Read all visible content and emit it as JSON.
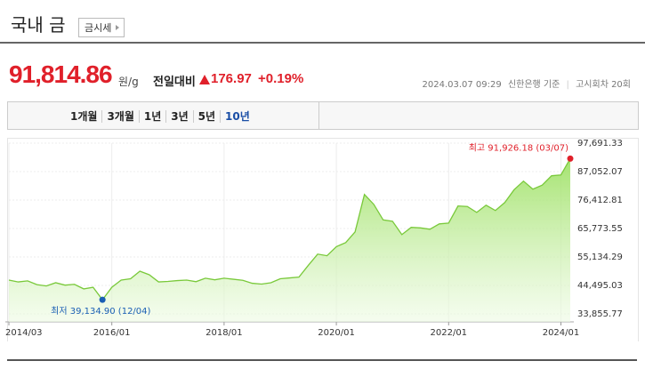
{
  "header": {
    "title": "국내 금",
    "button": "금시세"
  },
  "price": {
    "value": "91,814.86",
    "unit": "원/g",
    "change_label": "전일대비",
    "change": "176.97",
    "change_pct": "+0.19%",
    "date": "2024.03.07 09:29",
    "source": "신한은행 기준",
    "round": "고시회차 20회"
  },
  "tabs": [
    "1개월",
    "3개월",
    "1년",
    "3년",
    "5년",
    "10년"
  ],
  "active_tab": 5,
  "chart_data": {
    "type": "area",
    "color": "#79c93a",
    "x": [
      "2014/03",
      "2014/05",
      "2014/07",
      "2014/09",
      "2014/11",
      "2015/01",
      "2015/03",
      "2015/05",
      "2015/07",
      "2015/09",
      "2015/11",
      "2016/01",
      "2016/03",
      "2016/05",
      "2016/07",
      "2016/09",
      "2016/11",
      "2017/01",
      "2017/03",
      "2017/05",
      "2017/07",
      "2017/09",
      "2017/11",
      "2018/01",
      "2018/03",
      "2018/05",
      "2018/07",
      "2018/09",
      "2018/11",
      "2019/01",
      "2019/03",
      "2019/05",
      "2019/07",
      "2019/09",
      "2019/11",
      "2020/01",
      "2020/03",
      "2020/05",
      "2020/07",
      "2020/09",
      "2020/11",
      "2021/01",
      "2021/03",
      "2021/05",
      "2021/07",
      "2021/09",
      "2021/11",
      "2022/01",
      "2022/03",
      "2022/05",
      "2022/07",
      "2022/09",
      "2022/11",
      "2023/01",
      "2023/03",
      "2023/05",
      "2023/07",
      "2023/09",
      "2023/11",
      "2024/01",
      "2024/03"
    ],
    "values": [
      46500,
      45800,
      46200,
      44800,
      44300,
      45500,
      44600,
      44900,
      43200,
      43800,
      39134.9,
      43800,
      46500,
      47000,
      49800,
      48500,
      45800,
      46000,
      46300,
      46500,
      45900,
      47200,
      46600,
      47200,
      46800,
      46400,
      45300,
      45000,
      45500,
      47000,
      47300,
      47600,
      52000,
      56200,
      55600,
      59000,
      60500,
      64500,
      78500,
      74800,
      69000,
      68500,
      63500,
      66200,
      66000,
      65500,
      67500,
      67800,
      74200,
      74000,
      71800,
      74500,
      72500,
      75500,
      80300,
      83500,
      80500,
      82000,
      85500,
      85800,
      91926.18
    ],
    "xticks": [
      "2014/03",
      "2016/01",
      "2018/01",
      "2020/01",
      "2022/01",
      "2024/01"
    ],
    "ylim": [
      33855.77,
      97691.33
    ],
    "yticks": [
      {
        "value": 33855.77,
        "label": "33,855.77"
      },
      {
        "value": 44495.03,
        "label": "44,495.03"
      },
      {
        "value": 55134.29,
        "label": "55,134.29"
      },
      {
        "value": 65773.55,
        "label": "65,773.55"
      },
      {
        "value": 76412.81,
        "label": "76,412.81"
      },
      {
        "value": 87052.07,
        "label": "87,052.07"
      },
      {
        "value": 97691.33,
        "label": "97,691.33"
      }
    ],
    "grid": true,
    "max_value": 91926.18,
    "max_label": "최고 91,926.18 (03/07)",
    "max_color": "#e0202a",
    "min_value": 39134.9,
    "min_label": "최저 39,134.90 (12/04)",
    "min_color": "#1a5fb4"
  }
}
